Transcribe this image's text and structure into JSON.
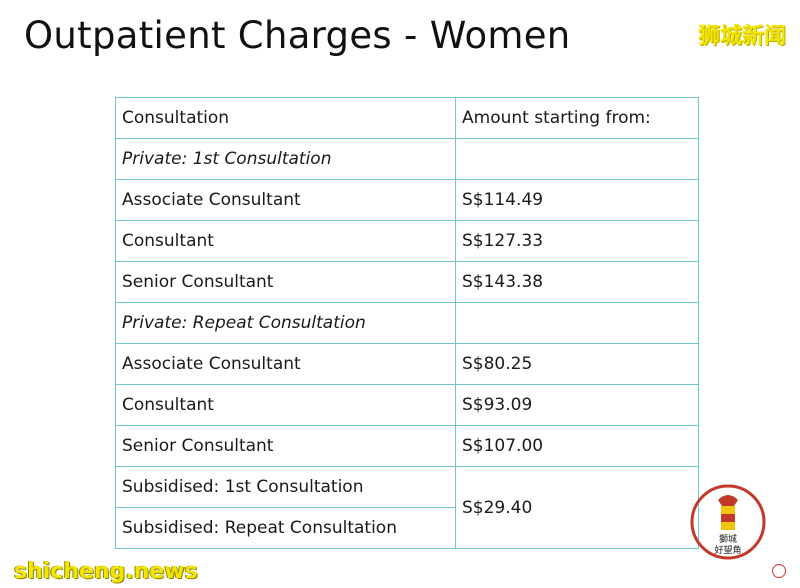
{
  "title": "Outpatient Charges - Women",
  "brand_cn": "狮城新闻",
  "watermark": "shicheng.news",
  "seal_text": "獅城好望角",
  "table": {
    "headers": [
      "Consultation",
      "Amount starting from:"
    ],
    "rows": [
      {
        "label": "Private: 1st Consultation",
        "amount": "",
        "italic": true
      },
      {
        "label": "Associate Consultant",
        "amount": "S$114.49"
      },
      {
        "label": "Consultant",
        "amount": "S$127.33"
      },
      {
        "label": "Senior Consultant",
        "amount": "S$143.38"
      },
      {
        "label": "Private: Repeat Consultation",
        "amount": "",
        "italic": true
      },
      {
        "label": "Associate Consultant",
        "amount": "S$80.25"
      },
      {
        "label": "Consultant",
        "amount": "S$93.09"
      },
      {
        "label": "Senior Consultant",
        "amount": "S$107.00"
      },
      {
        "label": "Subsidised: 1st Consultation",
        "amount": "S$29.40"
      },
      {
        "label": "Subsidised: Repeat Consultation",
        "amount": ""
      }
    ]
  },
  "colors": {
    "table_border": "#6fc6d1",
    "watermark": "#f2e600"
  }
}
